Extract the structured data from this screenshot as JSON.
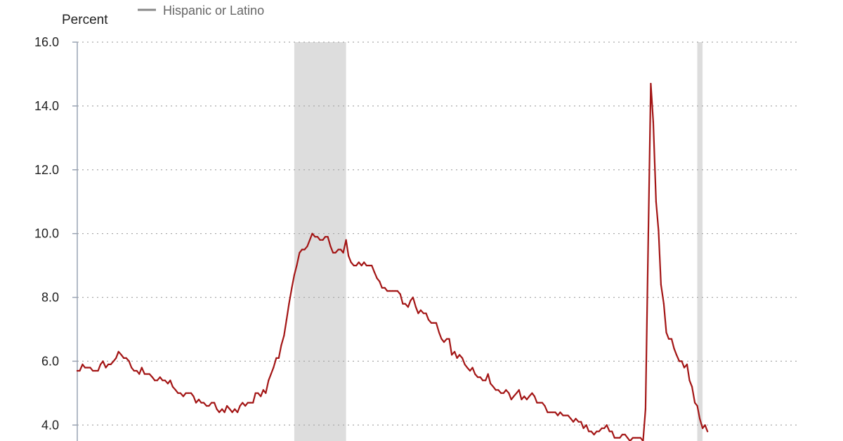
{
  "chart_data": {
    "type": "line",
    "ylabel": "Percent",
    "ylim": [
      3.5,
      16
    ],
    "xlim": [
      2000,
      2023.25
    ],
    "y_ticks": [
      "16.0",
      "14.0",
      "12.0",
      "10.0",
      "8.0",
      "6.0",
      "4.0"
    ],
    "grid": true,
    "legend_position": "top-left",
    "shaded_periods": [
      {
        "start": 2007.0,
        "end": 2008.67
      },
      {
        "start": 2020.0,
        "end": 2020.17
      }
    ],
    "colors": {
      "series": "#a31515",
      "shading": "#dddddd",
      "grid": "#a9a9a9",
      "legend_swatch": "#888888"
    },
    "series": [
      {
        "name": "Hispanic or Latino",
        "points": [
          [
            2000.0,
            5.7
          ],
          [
            2000.08,
            5.7
          ],
          [
            2000.17,
            5.9
          ],
          [
            2000.25,
            5.8
          ],
          [
            2000.33,
            5.8
          ],
          [
            2000.42,
            5.8
          ],
          [
            2000.5,
            5.7
          ],
          [
            2000.58,
            5.7
          ],
          [
            2000.67,
            5.7
          ],
          [
            2000.75,
            5.9
          ],
          [
            2000.83,
            6.0
          ],
          [
            2000.92,
            5.8
          ],
          [
            2001.0,
            5.9
          ],
          [
            2001.08,
            5.9
          ],
          [
            2001.17,
            6.0
          ],
          [
            2001.25,
            6.1
          ],
          [
            2001.33,
            6.3
          ],
          [
            2001.42,
            6.2
          ],
          [
            2001.5,
            6.1
          ],
          [
            2001.58,
            6.1
          ],
          [
            2001.67,
            6.0
          ],
          [
            2001.75,
            5.8
          ],
          [
            2001.83,
            5.7
          ],
          [
            2001.92,
            5.7
          ],
          [
            2002.0,
            5.6
          ],
          [
            2002.08,
            5.8
          ],
          [
            2002.17,
            5.6
          ],
          [
            2002.25,
            5.6
          ],
          [
            2002.33,
            5.6
          ],
          [
            2002.42,
            5.5
          ],
          [
            2002.5,
            5.4
          ],
          [
            2002.58,
            5.4
          ],
          [
            2002.67,
            5.5
          ],
          [
            2002.75,
            5.4
          ],
          [
            2002.83,
            5.4
          ],
          [
            2002.92,
            5.3
          ],
          [
            2003.0,
            5.4
          ],
          [
            2003.08,
            5.2
          ],
          [
            2003.17,
            5.1
          ],
          [
            2003.25,
            5.0
          ],
          [
            2003.33,
            5.0
          ],
          [
            2003.42,
            4.9
          ],
          [
            2003.5,
            5.0
          ],
          [
            2003.58,
            5.0
          ],
          [
            2003.67,
            5.0
          ],
          [
            2003.75,
            4.9
          ],
          [
            2003.83,
            4.7
          ],
          [
            2003.92,
            4.8
          ],
          [
            2004.0,
            4.7
          ],
          [
            2004.08,
            4.7
          ],
          [
            2004.17,
            4.6
          ],
          [
            2004.25,
            4.6
          ],
          [
            2004.33,
            4.7
          ],
          [
            2004.42,
            4.7
          ],
          [
            2004.5,
            4.5
          ],
          [
            2004.58,
            4.4
          ],
          [
            2004.67,
            4.5
          ],
          [
            2004.75,
            4.4
          ],
          [
            2004.83,
            4.6
          ],
          [
            2004.92,
            4.5
          ],
          [
            2005.0,
            4.4
          ],
          [
            2005.08,
            4.5
          ],
          [
            2005.17,
            4.4
          ],
          [
            2005.25,
            4.6
          ],
          [
            2005.33,
            4.7
          ],
          [
            2005.42,
            4.6
          ],
          [
            2005.5,
            4.7
          ],
          [
            2005.58,
            4.7
          ],
          [
            2005.67,
            4.7
          ],
          [
            2005.75,
            5.0
          ],
          [
            2005.83,
            5.0
          ],
          [
            2005.92,
            4.9
          ],
          [
            2006.0,
            5.1
          ],
          [
            2006.08,
            5.0
          ],
          [
            2006.17,
            5.4
          ],
          [
            2006.25,
            5.6
          ],
          [
            2006.33,
            5.8
          ],
          [
            2006.42,
            6.1
          ],
          [
            2006.5,
            6.1
          ],
          [
            2006.58,
            6.5
          ],
          [
            2006.67,
            6.8
          ],
          [
            2006.75,
            7.3
          ],
          [
            2006.83,
            7.8
          ],
          [
            2006.92,
            8.3
          ],
          [
            2007.0,
            8.7
          ],
          [
            2007.08,
            9.0
          ],
          [
            2007.17,
            9.4
          ],
          [
            2007.25,
            9.5
          ],
          [
            2007.33,
            9.5
          ],
          [
            2007.42,
            9.6
          ],
          [
            2007.5,
            9.8
          ],
          [
            2007.58,
            10.0
          ],
          [
            2007.67,
            9.9
          ],
          [
            2007.75,
            9.9
          ],
          [
            2007.83,
            9.8
          ],
          [
            2007.92,
            9.8
          ],
          [
            2008.0,
            9.9
          ],
          [
            2008.08,
            9.9
          ],
          [
            2008.17,
            9.6
          ],
          [
            2008.25,
            9.4
          ],
          [
            2008.33,
            9.4
          ],
          [
            2008.42,
            9.5
          ],
          [
            2008.5,
            9.5
          ],
          [
            2008.58,
            9.4
          ],
          [
            2008.67,
            9.8
          ],
          [
            2008.75,
            9.3
          ],
          [
            2008.83,
            9.1
          ],
          [
            2008.92,
            9.0
          ],
          [
            2009.0,
            9.0
          ],
          [
            2009.08,
            9.1
          ],
          [
            2009.17,
            9.0
          ],
          [
            2009.25,
            9.1
          ],
          [
            2009.33,
            9.0
          ],
          [
            2009.42,
            9.0
          ],
          [
            2009.5,
            9.0
          ],
          [
            2009.58,
            8.8
          ],
          [
            2009.67,
            8.6
          ],
          [
            2009.75,
            8.5
          ],
          [
            2009.83,
            8.3
          ],
          [
            2009.92,
            8.3
          ],
          [
            2010.0,
            8.2
          ],
          [
            2010.08,
            8.2
          ],
          [
            2010.17,
            8.2
          ],
          [
            2010.25,
            8.2
          ],
          [
            2010.33,
            8.2
          ],
          [
            2010.42,
            8.1
          ],
          [
            2010.5,
            7.8
          ],
          [
            2010.58,
            7.8
          ],
          [
            2010.67,
            7.7
          ],
          [
            2010.75,
            7.9
          ],
          [
            2010.83,
            8.0
          ],
          [
            2010.92,
            7.7
          ],
          [
            2011.0,
            7.5
          ],
          [
            2011.08,
            7.6
          ],
          [
            2011.17,
            7.5
          ],
          [
            2011.25,
            7.5
          ],
          [
            2011.33,
            7.3
          ],
          [
            2011.42,
            7.2
          ],
          [
            2011.5,
            7.2
          ],
          [
            2011.58,
            7.2
          ],
          [
            2011.67,
            6.9
          ],
          [
            2011.75,
            6.7
          ],
          [
            2011.83,
            6.6
          ],
          [
            2011.92,
            6.7
          ],
          [
            2012.0,
            6.7
          ],
          [
            2012.08,
            6.2
          ],
          [
            2012.17,
            6.3
          ],
          [
            2012.25,
            6.1
          ],
          [
            2012.33,
            6.2
          ],
          [
            2012.42,
            6.1
          ],
          [
            2012.5,
            5.9
          ],
          [
            2012.58,
            5.8
          ],
          [
            2012.67,
            5.7
          ],
          [
            2012.75,
            5.8
          ],
          [
            2012.83,
            5.6
          ],
          [
            2012.92,
            5.5
          ],
          [
            2013.0,
            5.5
          ],
          [
            2013.08,
            5.4
          ],
          [
            2013.17,
            5.4
          ],
          [
            2013.25,
            5.6
          ],
          [
            2013.33,
            5.3
          ],
          [
            2013.42,
            5.2
          ],
          [
            2013.5,
            5.1
          ],
          [
            2013.58,
            5.1
          ],
          [
            2013.67,
            5.0
          ],
          [
            2013.75,
            5.0
          ],
          [
            2013.83,
            5.1
          ],
          [
            2013.92,
            5.0
          ],
          [
            2014.0,
            4.8
          ],
          [
            2014.08,
            4.9
          ],
          [
            2014.17,
            5.0
          ],
          [
            2014.25,
            5.1
          ],
          [
            2014.33,
            4.8
          ],
          [
            2014.42,
            4.9
          ],
          [
            2014.5,
            4.8
          ],
          [
            2014.58,
            4.9
          ],
          [
            2014.67,
            5.0
          ],
          [
            2014.75,
            4.9
          ],
          [
            2014.83,
            4.7
          ],
          [
            2014.92,
            4.7
          ],
          [
            2015.0,
            4.7
          ],
          [
            2015.08,
            4.6
          ],
          [
            2015.17,
            4.4
          ],
          [
            2015.25,
            4.4
          ],
          [
            2015.33,
            4.4
          ],
          [
            2015.42,
            4.4
          ],
          [
            2015.5,
            4.3
          ],
          [
            2015.58,
            4.4
          ],
          [
            2015.67,
            4.3
          ],
          [
            2015.75,
            4.3
          ],
          [
            2015.83,
            4.3
          ],
          [
            2015.92,
            4.2
          ],
          [
            2016.0,
            4.1
          ],
          [
            2016.08,
            4.2
          ],
          [
            2016.17,
            4.1
          ],
          [
            2016.25,
            4.1
          ],
          [
            2016.33,
            3.9
          ],
          [
            2016.42,
            4.0
          ],
          [
            2016.5,
            3.8
          ],
          [
            2016.58,
            3.8
          ],
          [
            2016.67,
            3.7
          ],
          [
            2016.75,
            3.8
          ],
          [
            2016.83,
            3.8
          ],
          [
            2016.92,
            3.9
          ],
          [
            2017.0,
            3.9
          ],
          [
            2017.08,
            4.0
          ],
          [
            2017.17,
            3.8
          ],
          [
            2017.25,
            3.8
          ],
          [
            2017.33,
            3.6
          ],
          [
            2017.42,
            3.6
          ],
          [
            2017.5,
            3.6
          ],
          [
            2017.58,
            3.7
          ],
          [
            2017.67,
            3.7
          ],
          [
            2017.75,
            3.6
          ],
          [
            2017.83,
            3.5
          ],
          [
            2017.92,
            3.6
          ],
          [
            2018.0,
            3.6
          ],
          [
            2018.08,
            3.6
          ],
          [
            2018.17,
            3.6
          ],
          [
            2018.25,
            3.5
          ],
          [
            2018.33,
            4.5
          ],
          [
            2018.42,
            10.0
          ],
          [
            2018.5,
            14.7
          ],
          [
            2018.58,
            13.5
          ],
          [
            2018.67,
            11.0
          ],
          [
            2018.75,
            10.1
          ],
          [
            2018.83,
            8.4
          ],
          [
            2018.92,
            7.8
          ],
          [
            2019.0,
            6.9
          ],
          [
            2019.08,
            6.7
          ],
          [
            2019.17,
            6.7
          ],
          [
            2019.25,
            6.4
          ],
          [
            2019.33,
            6.2
          ],
          [
            2019.42,
            6.0
          ],
          [
            2019.5,
            6.0
          ],
          [
            2019.58,
            5.8
          ],
          [
            2019.67,
            5.9
          ],
          [
            2019.75,
            5.4
          ],
          [
            2019.83,
            5.2
          ],
          [
            2019.92,
            4.7
          ],
          [
            2020.0,
            4.6
          ],
          [
            2020.08,
            4.2
          ],
          [
            2020.17,
            3.9
          ],
          [
            2020.25,
            4.0
          ],
          [
            2020.33,
            3.8
          ]
        ]
      }
    ]
  }
}
